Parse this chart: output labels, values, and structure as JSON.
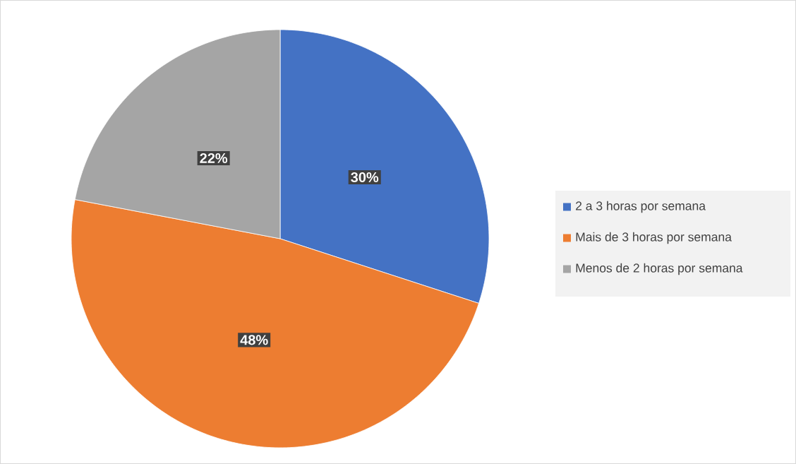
{
  "chart_data": {
    "type": "pie",
    "categories": [
      "2 a 3 horas por semana",
      "Mais de 3 horas por semana",
      "Menos de 2 horas por semana"
    ],
    "values": [
      30,
      48,
      22
    ],
    "colors": [
      "#4472c4",
      "#ed7d31",
      "#a5a5a5"
    ],
    "value_labels": [
      "30%",
      "48%",
      "22%"
    ],
    "legend": "right"
  }
}
